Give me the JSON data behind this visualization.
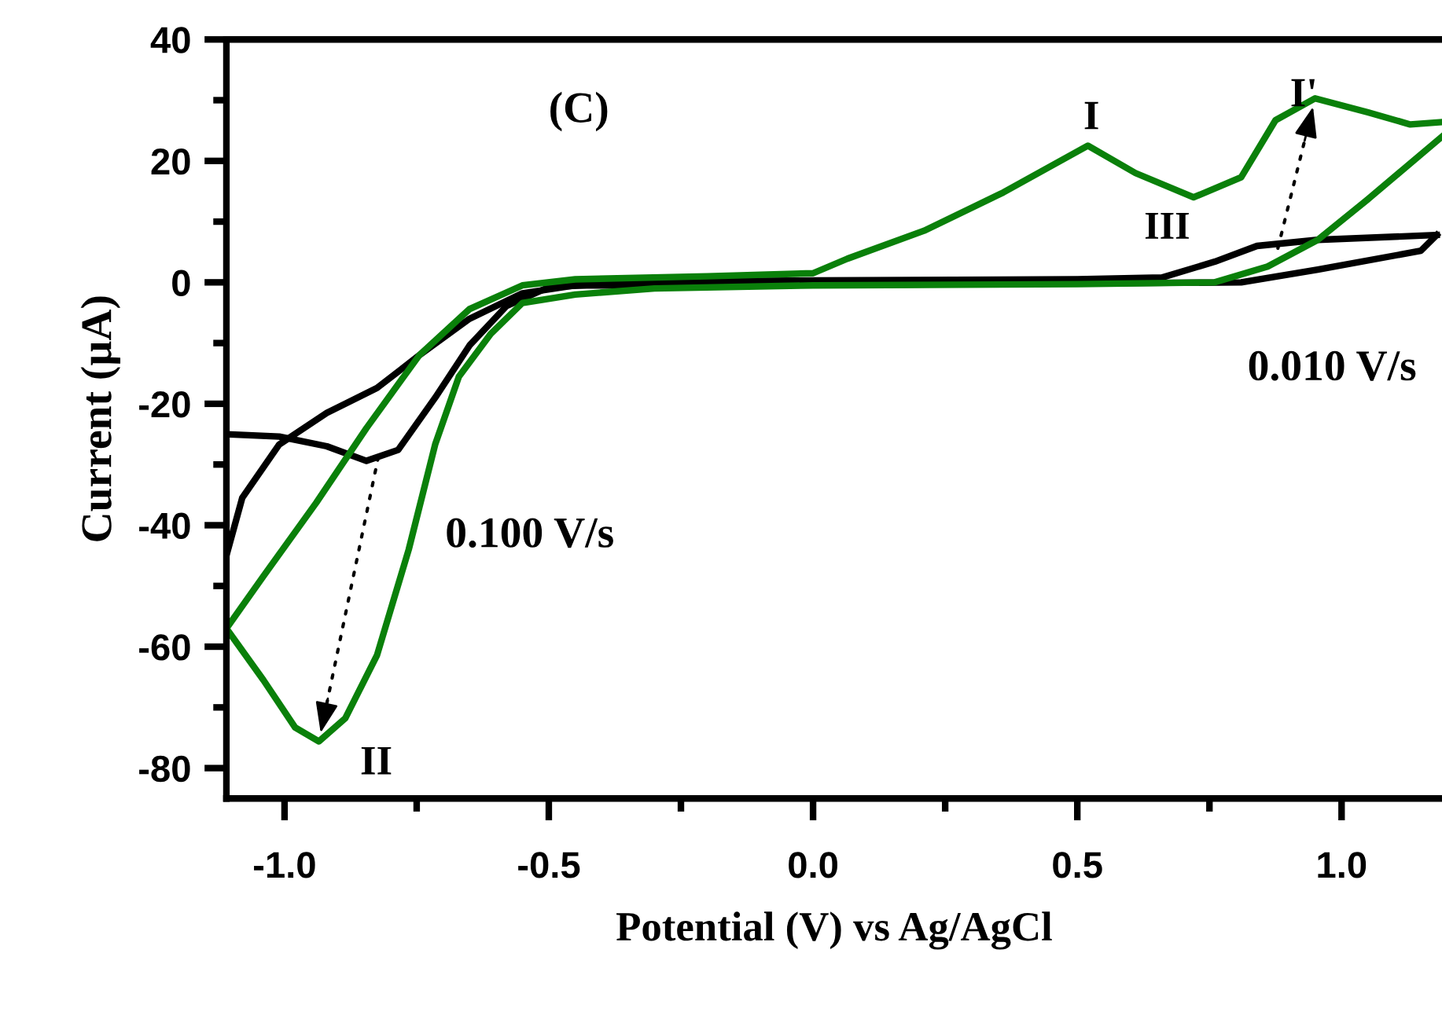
{
  "chart_data": {
    "type": "line",
    "xlabel": "Potential (V) vs Ag/AgCl",
    "ylabel": "Current (µA)",
    "xlim": [
      -1.11,
      1.19
    ],
    "ylim": [
      -85,
      40
    ],
    "xticks": [
      {
        "value": -1.0,
        "label": "-1.0"
      },
      {
        "value": -0.75,
        "label": null
      },
      -0.5,
      {
        "value": -0.25,
        "label": null
      },
      {
        "value": 0,
        "label": "0.0"
      },
      {
        "value": 0.25,
        "label": null
      },
      0.5,
      {
        "value": 0.75,
        "label": null
      },
      {
        "value": 1,
        "label": "1.0"
      }
    ],
    "yticks": [
      -80,
      {
        "value": -70,
        "label": null
      },
      -60,
      {
        "value": -50,
        "label": null
      },
      -40,
      {
        "value": -30,
        "label": null
      },
      -20,
      {
        "value": -10,
        "label": null
      },
      0,
      {
        "value": 10,
        "label": null
      },
      20,
      {
        "value": 30,
        "label": null
      },
      40
    ],
    "grid": false,
    "legend": false,
    "line_style": "solid",
    "marker": "none",
    "series": [
      {
        "color": "#000000",
        "x": [
          -1.11,
          -1.01,
          -0.92,
          -0.845,
          -0.785,
          -0.715,
          -0.65,
          -0.58,
          -0.5,
          -0.3,
          0.0,
          0.5,
          0.66,
          0.76,
          0.84,
          0.955,
          1.18
        ],
        "values": [
          -25,
          -25.4,
          -27,
          -29.4,
          -27.6,
          -19,
          -10.4,
          -3.9,
          -0.8,
          0.2,
          0.3,
          0.5,
          0.8,
          3.4,
          6,
          7,
          7.8
        ]
      },
      {
        "color": "#000000",
        "x": [
          1.18,
          1.15,
          0.955,
          0.81,
          0.3,
          -0.3,
          -0.45,
          -0.55,
          -0.65,
          -0.745,
          -0.825,
          -0.92,
          -1.01,
          -1.08,
          -1.11
        ],
        "values": [
          7.8,
          5.2,
          2.1,
          0,
          -0.3,
          -0.5,
          -0.5,
          -1.8,
          -6,
          -12,
          -17.4,
          -21.5,
          -26.7,
          -35.5,
          -45
        ]
      },
      {
        "color": "#0a800a",
        "x": [
          -1.11,
          -1.04,
          -0.94,
          -0.845,
          -0.745,
          -0.65,
          -0.55,
          -0.45,
          -0.2,
          0.0,
          0.065,
          0.21,
          0.36,
          0.52,
          0.61,
          0.72,
          0.81,
          0.875,
          0.95,
          1.05,
          1.13,
          1.19
        ],
        "values": [
          -57,
          -48.4,
          -36.3,
          -24,
          -12,
          -4.4,
          -0.5,
          0.5,
          1,
          1.5,
          3.9,
          8.5,
          14.8,
          22.5,
          18,
          14,
          17.3,
          26.7,
          30.3,
          28,
          26,
          26.4
        ]
      },
      {
        "color": "#0a800a",
        "x": [
          1.19,
          1.05,
          0.955,
          0.86,
          0.76,
          0.5,
          0.0,
          -0.3,
          -0.45,
          -0.55,
          -0.61,
          -0.67,
          -0.715,
          -0.765,
          -0.825,
          -0.885,
          -0.935,
          -0.98,
          -1.04,
          -1.11
        ],
        "values": [
          24,
          13.7,
          7,
          2.6,
          0,
          -0.3,
          -0.5,
          -1,
          -2,
          -3.4,
          -8.5,
          -15.5,
          -26.7,
          -44,
          -61.4,
          -71.8,
          -75.6,
          -73.3,
          -65.5,
          -57
        ]
      }
    ],
    "annotations": [
      "(C)",
      "I",
      {
        "text": "I'",
        "x": 0.95,
        "y": 30.3
      },
      {
        "text": "II",
        "x": -0.935,
        "y": -75.6
      },
      "III",
      "0.100 V/s",
      "0.010 V/s"
    ]
  }
}
